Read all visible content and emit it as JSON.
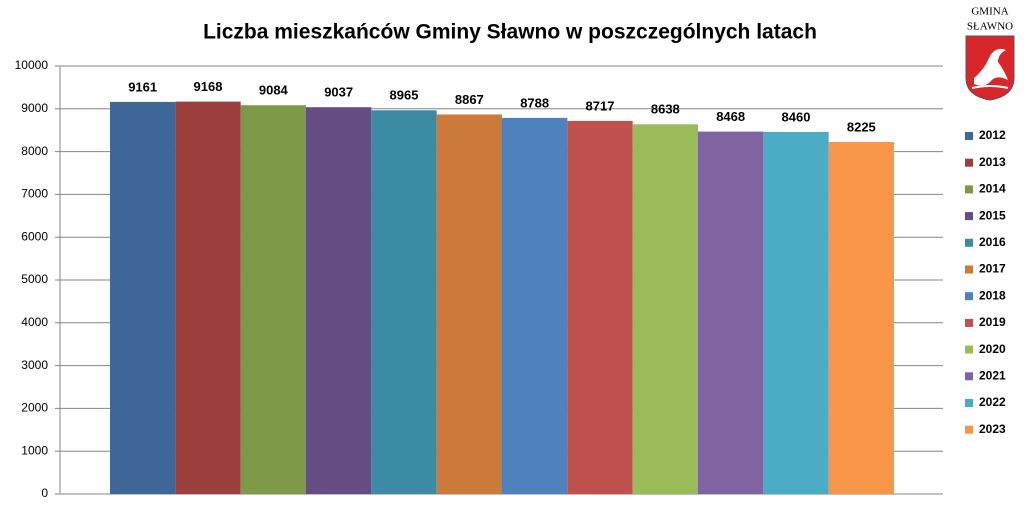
{
  "chart_data": {
    "type": "bar",
    "title": "Liczba mieszkańców Gminy Sławno w poszczególnych latach",
    "series": [
      {
        "name": "2012",
        "color": "#3f6797",
        "values": [
          9161
        ]
      },
      {
        "name": "2013",
        "color": "#9c3f3c",
        "values": [
          9168
        ]
      },
      {
        "name": "2014",
        "color": "#7e9a48",
        "values": [
          9084
        ]
      },
      {
        "name": "2015",
        "color": "#654d83",
        "values": [
          9037
        ]
      },
      {
        "name": "2016",
        "color": "#3a8ba3",
        "values": [
          8965
        ]
      },
      {
        "name": "2017",
        "color": "#cc7a37",
        "values": [
          8867
        ]
      },
      {
        "name": "2018",
        "color": "#4f81bd",
        "values": [
          8788
        ]
      },
      {
        "name": "2019",
        "color": "#c0504d",
        "values": [
          8717
        ]
      },
      {
        "name": "2020",
        "color": "#9bbb59",
        "values": [
          8638
        ]
      },
      {
        "name": "2021",
        "color": "#8064a2",
        "values": [
          8468
        ]
      },
      {
        "name": "2022",
        "color": "#4bacc6",
        "values": [
          8460
        ]
      },
      {
        "name": "2023",
        "color": "#f79646",
        "values": [
          8225
        ]
      }
    ],
    "ylim": [
      0,
      10000
    ],
    "yticks": [
      0,
      1000,
      2000,
      3000,
      4000,
      5000,
      6000,
      7000,
      8000,
      9000,
      10000
    ],
    "grid": true,
    "legend": "right"
  },
  "logo": {
    "lines": [
      "GMINA",
      "SŁAWNO"
    ]
  }
}
